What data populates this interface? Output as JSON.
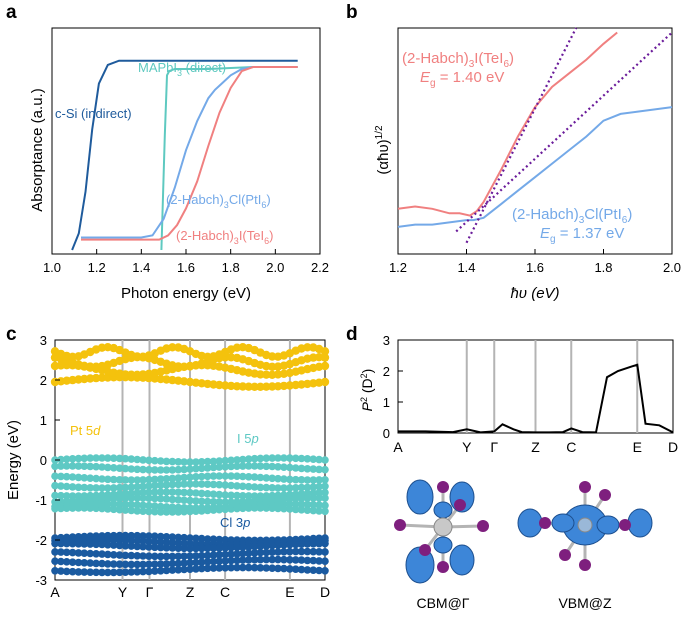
{
  "panel_labels": {
    "a": "a",
    "b": "b",
    "c": "c",
    "d": "d"
  },
  "colors": {
    "si": "#1f5b9c",
    "mapbi3": "#5ec9c0",
    "ptcl": "#74a9e8",
    "teli": "#f08080",
    "fit": "#6a1b9a",
    "pt5d": "#f4c20d",
    "i5p": "#5ec9c4",
    "cl3p": "#1a5aa0",
    "iso_blue": "#3d86d8",
    "iso_purple": "#7e1f7e",
    "grey": "#b4b4b4"
  },
  "chart_data": [
    {
      "id": "a",
      "type": "line",
      "xlabel": "Photon energy (eV)",
      "ylabel": "Absorptance (a.u.)",
      "xlim": [
        1.0,
        2.2
      ],
      "ylim": [
        0,
        1
      ],
      "xticks": [
        "1.0",
        "1.2",
        "1.4",
        "1.6",
        "1.8",
        "2.0",
        "2.2"
      ],
      "series": [
        {
          "name": "c-Si (indirect)",
          "color": "si",
          "x": [
            1.09,
            1.12,
            1.15,
            1.18,
            1.21,
            1.25,
            1.3,
            1.35,
            1.4,
            1.45,
            1.5,
            1.6,
            1.8,
            2.0,
            2.1
          ],
          "y": [
            0.0,
            0.08,
            0.28,
            0.58,
            0.8,
            0.89,
            0.91,
            0.91,
            0.91,
            0.91,
            0.91,
            0.91,
            0.91,
            0.91,
            0.91
          ]
        },
        {
          "name": "MAPbI3 (direct)",
          "color": "mapbi3",
          "x": [
            1.49,
            1.505,
            1.515,
            1.525,
            1.55,
            1.6,
            1.7,
            1.8,
            1.9,
            2.0,
            2.1
          ],
          "y": [
            0.0,
            0.55,
            0.84,
            0.86,
            0.87,
            0.87,
            0.87,
            0.875,
            0.88,
            0.88,
            0.88
          ]
        },
        {
          "name": "(2-Habch)3Cl(PtI6)",
          "color": "ptcl",
          "x": [
            1.13,
            1.2,
            1.3,
            1.4,
            1.45,
            1.5,
            1.55,
            1.6,
            1.65,
            1.7,
            1.73,
            1.76,
            1.8,
            1.85,
            1.9,
            2.0,
            2.1
          ],
          "y": [
            0.06,
            0.06,
            0.06,
            0.06,
            0.07,
            0.15,
            0.3,
            0.48,
            0.62,
            0.73,
            0.77,
            0.8,
            0.84,
            0.87,
            0.88,
            0.88,
            0.88
          ]
        },
        {
          "name": "(2-Habch)3I(TeI6)",
          "color": "teli",
          "x": [
            1.13,
            1.2,
            1.3,
            1.4,
            1.48,
            1.52,
            1.56,
            1.6,
            1.65,
            1.7,
            1.75,
            1.8,
            1.85,
            1.9,
            2.0,
            2.1
          ],
          "y": [
            0.05,
            0.05,
            0.05,
            0.05,
            0.05,
            0.07,
            0.12,
            0.2,
            0.33,
            0.5,
            0.66,
            0.78,
            0.86,
            0.88,
            0.88,
            0.88
          ]
        }
      ],
      "labels": {
        "si": "c-Si (indirect)",
        "mapbi3": "MAPbI",
        "mapbi3_sub": "3",
        "mapbi3_tail": " (direct)",
        "ptcl": "(2-Habch)",
        "ptcl_sub": "3",
        "ptcl_mid": "Cl(PtI",
        "ptcl_sub2": "6",
        "ptcl_end": ")",
        "teli": "(2-Habch)",
        "teli_sub": "3",
        "teli_mid": "I(TeI",
        "teli_sub2": "6",
        "teli_end": ")"
      }
    },
    {
      "id": "b",
      "type": "line",
      "xlabel": "ħυ (eV)",
      "ylabel": "(αħυ)",
      "ylabel_sup": "1/2",
      "xlim": [
        1.2,
        2.0
      ],
      "ylim": [
        0,
        1
      ],
      "xticks": [
        "1.2",
        "1.4",
        "1.6",
        "1.8",
        "2.0"
      ],
      "series": [
        {
          "name": "(2-Habch)3I(TeI6)",
          "color": "teli",
          "x": [
            1.2,
            1.25,
            1.3,
            1.35,
            1.38,
            1.41,
            1.43,
            1.45,
            1.5,
            1.55,
            1.6,
            1.65,
            1.7,
            1.75,
            1.8,
            1.84
          ],
          "y": [
            0.2,
            0.21,
            0.2,
            0.18,
            0.18,
            0.17,
            0.19,
            0.23,
            0.37,
            0.52,
            0.65,
            0.74,
            0.8,
            0.86,
            0.93,
            0.98
          ]
        },
        {
          "name": "(2-Habch)3Cl(PtI6)",
          "color": "ptcl",
          "x": [
            1.2,
            1.25,
            1.3,
            1.35,
            1.4,
            1.42,
            1.45,
            1.5,
            1.55,
            1.6,
            1.65,
            1.7,
            1.75,
            1.8,
            1.85,
            1.9,
            1.95,
            2.0
          ],
          "y": [
            0.12,
            0.13,
            0.13,
            0.14,
            0.15,
            0.15,
            0.16,
            0.22,
            0.28,
            0.34,
            0.4,
            0.46,
            0.52,
            0.59,
            0.62,
            0.63,
            0.64,
            0.65
          ]
        },
        {
          "name": "fit TeI6",
          "color": "fit",
          "dashed": true,
          "x": [
            1.4,
            1.72
          ],
          "y": [
            0.05,
            1.0
          ]
        },
        {
          "name": "fit PtI6",
          "color": "fit",
          "dashed": true,
          "x": [
            1.37,
            2.0
          ],
          "y": [
            0.1,
            0.98
          ]
        }
      ],
      "labels": {
        "teli_1": "(2-Habch)",
        "teli_1_sub": "3",
        "teli_1_mid": "I(TeI",
        "teli_1_sub2": "6",
        "teli_1_end": ")",
        "teli_eg": "E",
        "teli_eg_sub": "g",
        "teli_eg_val": " = 1.40 eV",
        "ptcl_1": "(2-Habch)",
        "ptcl_1_sub": "3",
        "ptcl_1_mid": "Cl(PtI",
        "ptcl_1_sub2": "6",
        "ptcl_1_end": ")",
        "ptcl_eg": "E",
        "ptcl_eg_sub": "g",
        "ptcl_eg_val": " = 1.37 eV"
      }
    },
    {
      "id": "c",
      "type": "scatter",
      "ylabel": "Energy (eV)",
      "ylim": [
        -3,
        3
      ],
      "yticks": [
        "3",
        "2",
        "1",
        "0",
        "-1",
        "-2",
        "-3"
      ],
      "kpoints": [
        "A",
        "Y",
        "Γ",
        "Z",
        "C",
        "E",
        "D"
      ],
      "kpos": [
        0,
        0.25,
        0.35,
        0.5,
        0.63,
        0.87,
        1.0
      ],
      "band_groups": [
        {
          "name": "Pt 5d",
          "label": "Pt 5",
          "label_em": "d",
          "color": "pt5d",
          "type": "conduction",
          "levels": [
            1.95,
            2.25,
            2.45,
            2.7
          ]
        },
        {
          "name": "I 5p",
          "label": "I 5",
          "label_em": "p",
          "color": "i5p",
          "type": "valence",
          "levels": [
            0.0,
            -0.2,
            -0.45,
            -0.65,
            -0.85,
            -1.0,
            -1.15,
            -1.25
          ]
        },
        {
          "name": "Cl 3p",
          "label": "Cl 3",
          "label_em": "p",
          "color": "cl3p",
          "type": "deep",
          "levels": [
            -1.95,
            -2.05,
            -2.15,
            -2.35,
            -2.55,
            -2.75
          ]
        }
      ]
    },
    {
      "id": "d",
      "type": "line",
      "ylabel": "P",
      "ylabel_sup": "2",
      "ylabel_tail": " (D",
      "ylabel_sup2": "2",
      "ylabel_end": ")",
      "ylim": [
        0,
        3
      ],
      "yticks": [
        "0",
        "1",
        "2",
        "3"
      ],
      "kpoints": [
        "A",
        "Y",
        "Γ",
        "Z",
        "C",
        "E",
        "D"
      ],
      "kpos": [
        0,
        0.25,
        0.35,
        0.5,
        0.63,
        0.87,
        1.0
      ],
      "series": [
        {
          "name": "P2",
          "color": "#000000",
          "k": [
            0,
            0.1,
            0.2,
            0.25,
            0.3,
            0.35,
            0.38,
            0.42,
            0.45,
            0.5,
            0.55,
            0.6,
            0.63,
            0.67,
            0.72,
            0.76,
            0.8,
            0.85,
            0.87,
            0.9,
            0.95,
            1.0
          ],
          "y": [
            0.05,
            0.05,
            0.03,
            0.12,
            0.02,
            0.05,
            0.28,
            0.12,
            0.03,
            0.02,
            0.02,
            0.03,
            0.15,
            0.03,
            0.02,
            1.8,
            2.0,
            2.15,
            2.2,
            0.3,
            0.25,
            0.02
          ]
        }
      ],
      "iso_labels": {
        "cbm": "CBM@Γ",
        "vbm": "VBM@Z"
      }
    }
  ]
}
